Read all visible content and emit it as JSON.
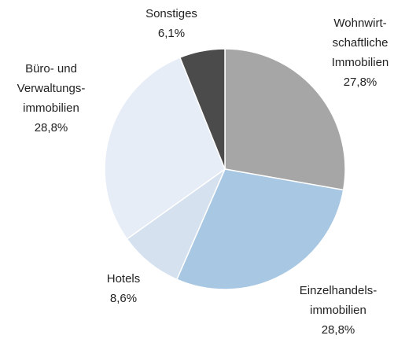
{
  "chart_data": {
    "type": "pie",
    "categories": [
      [
        "Wohnwirt-",
        "schaftliche",
        "Immobilien"
      ],
      [
        "Einzelhandels-",
        "immobilien"
      ],
      [
        "Hotels"
      ],
      [
        "Büro- und",
        "Verwaltungs-",
        "immobilien"
      ],
      [
        "Sonstiges"
      ]
    ],
    "values": [
      27.8,
      28.8,
      8.6,
      28.8,
      6.1
    ],
    "value_labels": [
      "27,8%",
      "28,8%",
      "8,6%",
      "28,8%",
      "6,1%"
    ],
    "colors": [
      "#a6a6a6",
      "#a7c7e3",
      "#d5e1ee",
      "#e7edf7",
      "#4b4b4b"
    ]
  }
}
